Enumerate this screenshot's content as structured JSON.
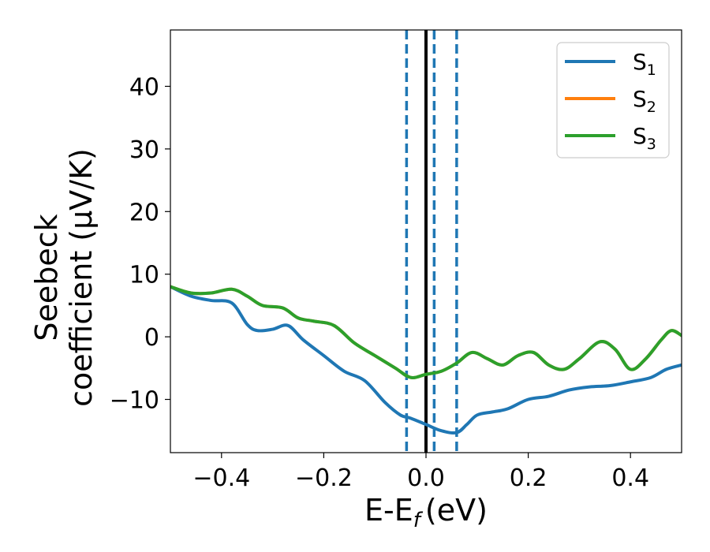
{
  "chart_data": {
    "type": "line",
    "xlabel": "E-E",
    "xlabel_sub": "f",
    "xlabel_unit": "(eV)",
    "ylabel_line1": "Seebeck",
    "ylabel_line2": "coefficient  (μV/K)",
    "xlim": [
      -0.5,
      0.5
    ],
    "ylim": [
      -18.5,
      49
    ],
    "x_ticks": [
      -0.4,
      -0.2,
      0.0,
      0.2,
      0.4
    ],
    "x_tick_labels": [
      "−0.4",
      "−0.2",
      "0.0",
      "0.2",
      "0.4"
    ],
    "y_ticks": [
      -10,
      0,
      10,
      20,
      30,
      40
    ],
    "y_tick_labels": [
      "−10",
      "0",
      "10",
      "20",
      "30",
      "40"
    ],
    "grid": false,
    "legend_position": "top-right",
    "vertical_lines": [
      {
        "x": 0.0,
        "style": "solid",
        "color": "#000000"
      },
      {
        "x": -0.038,
        "style": "dashed",
        "color": "#1f77b4"
      },
      {
        "x": 0.016,
        "style": "dashed",
        "color": "#1f77b4"
      },
      {
        "x": 0.06,
        "style": "dashed",
        "color": "#1f77b4"
      }
    ],
    "series": [
      {
        "name": "S",
        "sub": "1",
        "color": "#1f77b4",
        "x": [
          -0.5,
          -0.46,
          -0.42,
          -0.38,
          -0.35,
          -0.33,
          -0.3,
          -0.27,
          -0.24,
          -0.2,
          -0.16,
          -0.12,
          -0.08,
          -0.05,
          -0.03,
          0.0,
          0.03,
          0.06,
          0.08,
          0.1,
          0.13,
          0.16,
          0.2,
          0.24,
          0.28,
          0.32,
          0.36,
          0.4,
          0.44,
          0.47,
          0.5
        ],
        "values": [
          8.0,
          6.5,
          5.8,
          5.4,
          2.0,
          1.0,
          1.2,
          1.8,
          -0.5,
          -3.0,
          -5.5,
          -7.0,
          -10.5,
          -12.5,
          -13.0,
          -14.0,
          -15.0,
          -15.3,
          -14.0,
          -12.5,
          -12.0,
          -11.5,
          -10.0,
          -9.5,
          -8.5,
          -8.0,
          -7.8,
          -7.2,
          -6.5,
          -5.2,
          -4.5
        ]
      },
      {
        "name": "S",
        "sub": "2",
        "color": "#ff7f0e",
        "x": [
          -0.5,
          -0.46,
          -0.42,
          -0.38,
          -0.35,
          -0.32,
          -0.28,
          -0.25,
          -0.22,
          -0.18,
          -0.14,
          -0.1,
          -0.06,
          -0.03,
          0.0,
          0.03,
          0.06,
          0.09,
          0.12,
          0.15,
          0.18,
          0.21,
          0.24,
          0.27,
          0.3,
          0.34,
          0.37,
          0.4,
          0.43,
          0.46,
          0.48,
          0.5
        ],
        "values": [
          8.0,
          7.0,
          7.0,
          7.6,
          6.5,
          5.0,
          4.6,
          3.0,
          2.5,
          1.8,
          -1.0,
          -3.0,
          -5.0,
          -6.5,
          -6.0,
          -5.5,
          -4.2,
          -2.5,
          -3.5,
          -4.5,
          -3.0,
          -2.5,
          -4.5,
          -5.2,
          -3.5,
          -0.8,
          -2.0,
          -5.2,
          -3.5,
          -0.5,
          1.0,
          0.2
        ]
      },
      {
        "name": "S",
        "sub": "3",
        "color": "#2ca02c",
        "x": [
          -0.5,
          -0.46,
          -0.42,
          -0.38,
          -0.35,
          -0.32,
          -0.28,
          -0.25,
          -0.22,
          -0.18,
          -0.14,
          -0.1,
          -0.06,
          -0.03,
          0.0,
          0.03,
          0.06,
          0.09,
          0.12,
          0.15,
          0.18,
          0.21,
          0.24,
          0.27,
          0.3,
          0.34,
          0.37,
          0.4,
          0.43,
          0.46,
          0.48,
          0.5
        ],
        "values": [
          8.0,
          7.0,
          7.0,
          7.6,
          6.5,
          5.0,
          4.6,
          3.0,
          2.5,
          1.8,
          -1.0,
          -3.0,
          -5.0,
          -6.5,
          -6.0,
          -5.5,
          -4.2,
          -2.5,
          -3.5,
          -4.5,
          -3.0,
          -2.5,
          -4.5,
          -5.2,
          -3.5,
          -0.8,
          -2.0,
          -5.2,
          -3.5,
          -0.5,
          1.0,
          0.2
        ]
      }
    ]
  }
}
